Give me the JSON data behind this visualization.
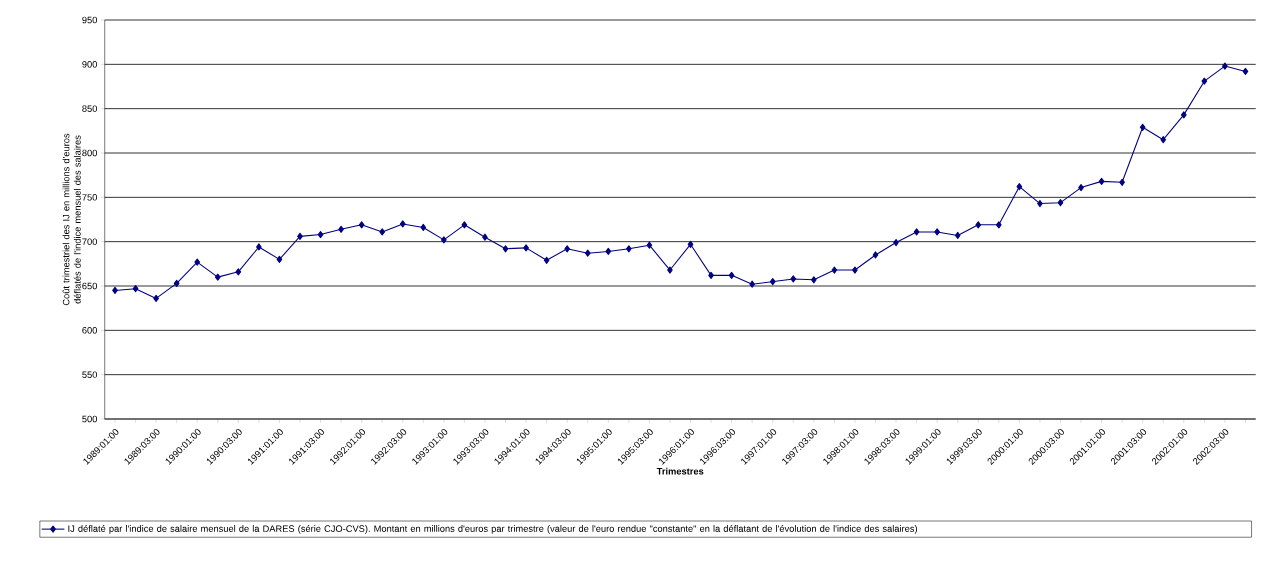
{
  "chart_data": {
    "type": "line",
    "xlabel": "Trimestres",
    "ylabel": "Coût trimestriel des IJ en millions d'euros déflatés de l'indice mensuel des salaires",
    "categories": [
      "1989:01:00",
      null,
      "1989:03:00",
      null,
      "1990:01:00",
      null,
      "1990:03:00",
      null,
      "1991:01:00",
      null,
      "1991:03:00",
      null,
      "1992:01:00",
      null,
      "1992:03:00",
      null,
      "1993:01:00",
      null,
      "1993:03:00",
      null,
      "1994:01:00",
      null,
      "1994:03:00",
      null,
      "1995:01:00",
      null,
      "1995:03:00",
      null,
      "1996:01:00",
      null,
      "1996:03:00",
      null,
      "1997:01:00",
      null,
      "1997:03:00",
      null,
      "1998:01:00",
      null,
      "1998:03:00",
      null,
      "1999:01:00",
      null,
      "1999:03:00",
      null,
      "2000:01:00",
      null,
      "2000:03:00",
      null,
      "2001:01:00",
      null,
      "2001:03:00",
      null,
      "2002:01:00",
      null,
      "2002:03:00",
      null
    ],
    "series": [
      {
        "name": "IJ déflaté par l'indice de salaire mensuel de la DARES (série CJO-CVS). Montant en millions d'euros par trimestre (valeur de l'euro rendue \"constante\" en la déflatant de l'évolution de l'indice des salaires)",
        "color": "#000080",
        "values": [
          645,
          647,
          636,
          653,
          677,
          660,
          666,
          694,
          680,
          706,
          708,
          714,
          719,
          711,
          720,
          716,
          702,
          719,
          705,
          692,
          693,
          679,
          692,
          687,
          689,
          692,
          696,
          668,
          697,
          662,
          662,
          652,
          655,
          658,
          657,
          668,
          668,
          685,
          699,
          711,
          711,
          707,
          719,
          719,
          762,
          743,
          744,
          761,
          768,
          767,
          829,
          815,
          843,
          881,
          898,
          892
        ]
      }
    ],
    "ylim": [
      500,
      950
    ],
    "yticks": [
      500,
      550,
      600,
      650,
      700,
      750,
      800,
      850,
      900,
      950
    ],
    "grid": "y",
    "legend": "bottom",
    "marker": "diamond",
    "line_style": "solid"
  }
}
